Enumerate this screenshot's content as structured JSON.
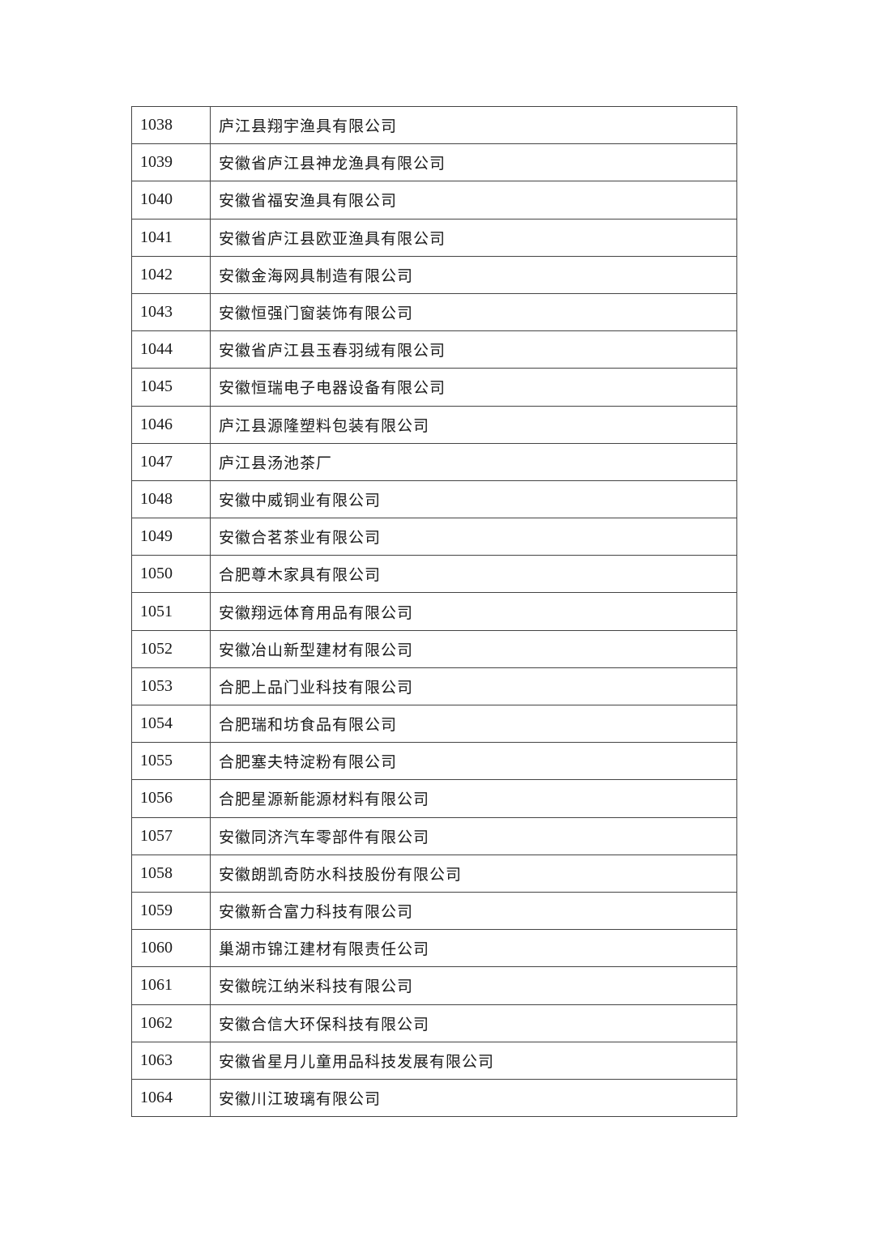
{
  "table": {
    "rows": [
      {
        "no": "1038",
        "name": "庐江县翔宇渔具有限公司"
      },
      {
        "no": "1039",
        "name": "安徽省庐江县神龙渔具有限公司"
      },
      {
        "no": "1040",
        "name": "安徽省福安渔具有限公司"
      },
      {
        "no": "1041",
        "name": "安徽省庐江县欧亚渔具有限公司"
      },
      {
        "no": "1042",
        "name": "安徽金海网具制造有限公司"
      },
      {
        "no": "1043",
        "name": "安徽恒强门窗装饰有限公司"
      },
      {
        "no": "1044",
        "name": "安徽省庐江县玉春羽绒有限公司"
      },
      {
        "no": "1045",
        "name": "安徽恒瑞电子电器设备有限公司"
      },
      {
        "no": "1046",
        "name": "庐江县源隆塑料包装有限公司"
      },
      {
        "no": "1047",
        "name": "庐江县汤池茶厂"
      },
      {
        "no": "1048",
        "name": "安徽中威铜业有限公司"
      },
      {
        "no": "1049",
        "name": "安徽合茗茶业有限公司"
      },
      {
        "no": "1050",
        "name": "合肥尊木家具有限公司"
      },
      {
        "no": "1051",
        "name": "安徽翔远体育用品有限公司"
      },
      {
        "no": "1052",
        "name": "安徽冶山新型建材有限公司"
      },
      {
        "no": "1053",
        "name": "合肥上品门业科技有限公司"
      },
      {
        "no": "1054",
        "name": "合肥瑞和坊食品有限公司"
      },
      {
        "no": "1055",
        "name": "合肥塞夫特淀粉有限公司"
      },
      {
        "no": "1056",
        "name": "合肥星源新能源材料有限公司"
      },
      {
        "no": "1057",
        "name": "安徽同济汽车零部件有限公司"
      },
      {
        "no": "1058",
        "name": "安徽朗凯奇防水科技股份有限公司"
      },
      {
        "no": "1059",
        "name": "安徽新合富力科技有限公司"
      },
      {
        "no": "1060",
        "name": "巢湖市锦江建材有限责任公司"
      },
      {
        "no": "1061",
        "name": "安徽皖江纳米科技有限公司"
      },
      {
        "no": "1062",
        "name": "安徽合信大环保科技有限公司"
      },
      {
        "no": "1063",
        "name": "安徽省星月儿童用品科技发展有限公司"
      },
      {
        "no": "1064",
        "name": "安徽川江玻璃有限公司"
      }
    ]
  }
}
